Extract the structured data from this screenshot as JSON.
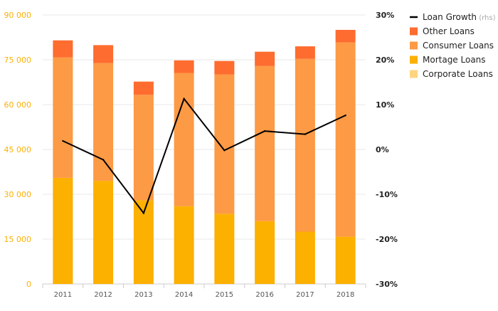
{
  "chart_data": {
    "type": "bar",
    "stacked": true,
    "categories": [
      "2011",
      "2012",
      "2013",
      "2014",
      "2015",
      "2016",
      "2017",
      "2018"
    ],
    "series": [
      {
        "name": "Corporate Loans",
        "type": "bar",
        "axis": "left",
        "color": "#fdd47e",
        "values": [
          0,
          0,
          0,
          0,
          0,
          0,
          0,
          0
        ]
      },
      {
        "name": "Mortage Loans",
        "type": "bar",
        "axis": "left",
        "color": "#fcb000",
        "values": [
          35500,
          34500,
          28000,
          26000,
          23500,
          21000,
          17500,
          15800
        ]
      },
      {
        "name": "Consumer Loans",
        "type": "bar",
        "axis": "left",
        "color": "#fd9a45",
        "values": [
          40300,
          39400,
          35300,
          44600,
          46600,
          51900,
          57800,
          65000
        ]
      },
      {
        "name": "Other Loans",
        "type": "bar",
        "axis": "left",
        "color": "#fe6c2f",
        "values": [
          5700,
          6000,
          4400,
          4200,
          4500,
          4800,
          4200,
          4200
        ]
      },
      {
        "name": "Loan Growth",
        "legend_suffix": "(rhs)",
        "type": "line",
        "axis": "right",
        "color": "#000000",
        "values": [
          1.9,
          -2.3,
          -14.2,
          11.3,
          -0.2,
          4.1,
          3.4,
          7.6
        ]
      }
    ],
    "left_axis": {
      "ylim": [
        0,
        90000
      ],
      "ticks": [
        "0",
        "15 000",
        "30 000",
        "45 000",
        "60 000",
        "75 000",
        "90 000"
      ],
      "tick_color": "#fcb000"
    },
    "right_axis": {
      "ylim": [
        -30,
        30
      ],
      "ticks": [
        "-30%",
        "-20%",
        "-10%",
        "0%",
        "10%",
        "20%",
        "30%"
      ]
    },
    "grid": true,
    "legend_position": "top-right",
    "legend_order": [
      "Loan Growth",
      "Other Loans",
      "Consumer Loans",
      "Mortage Loans",
      "Corporate Loans"
    ]
  }
}
